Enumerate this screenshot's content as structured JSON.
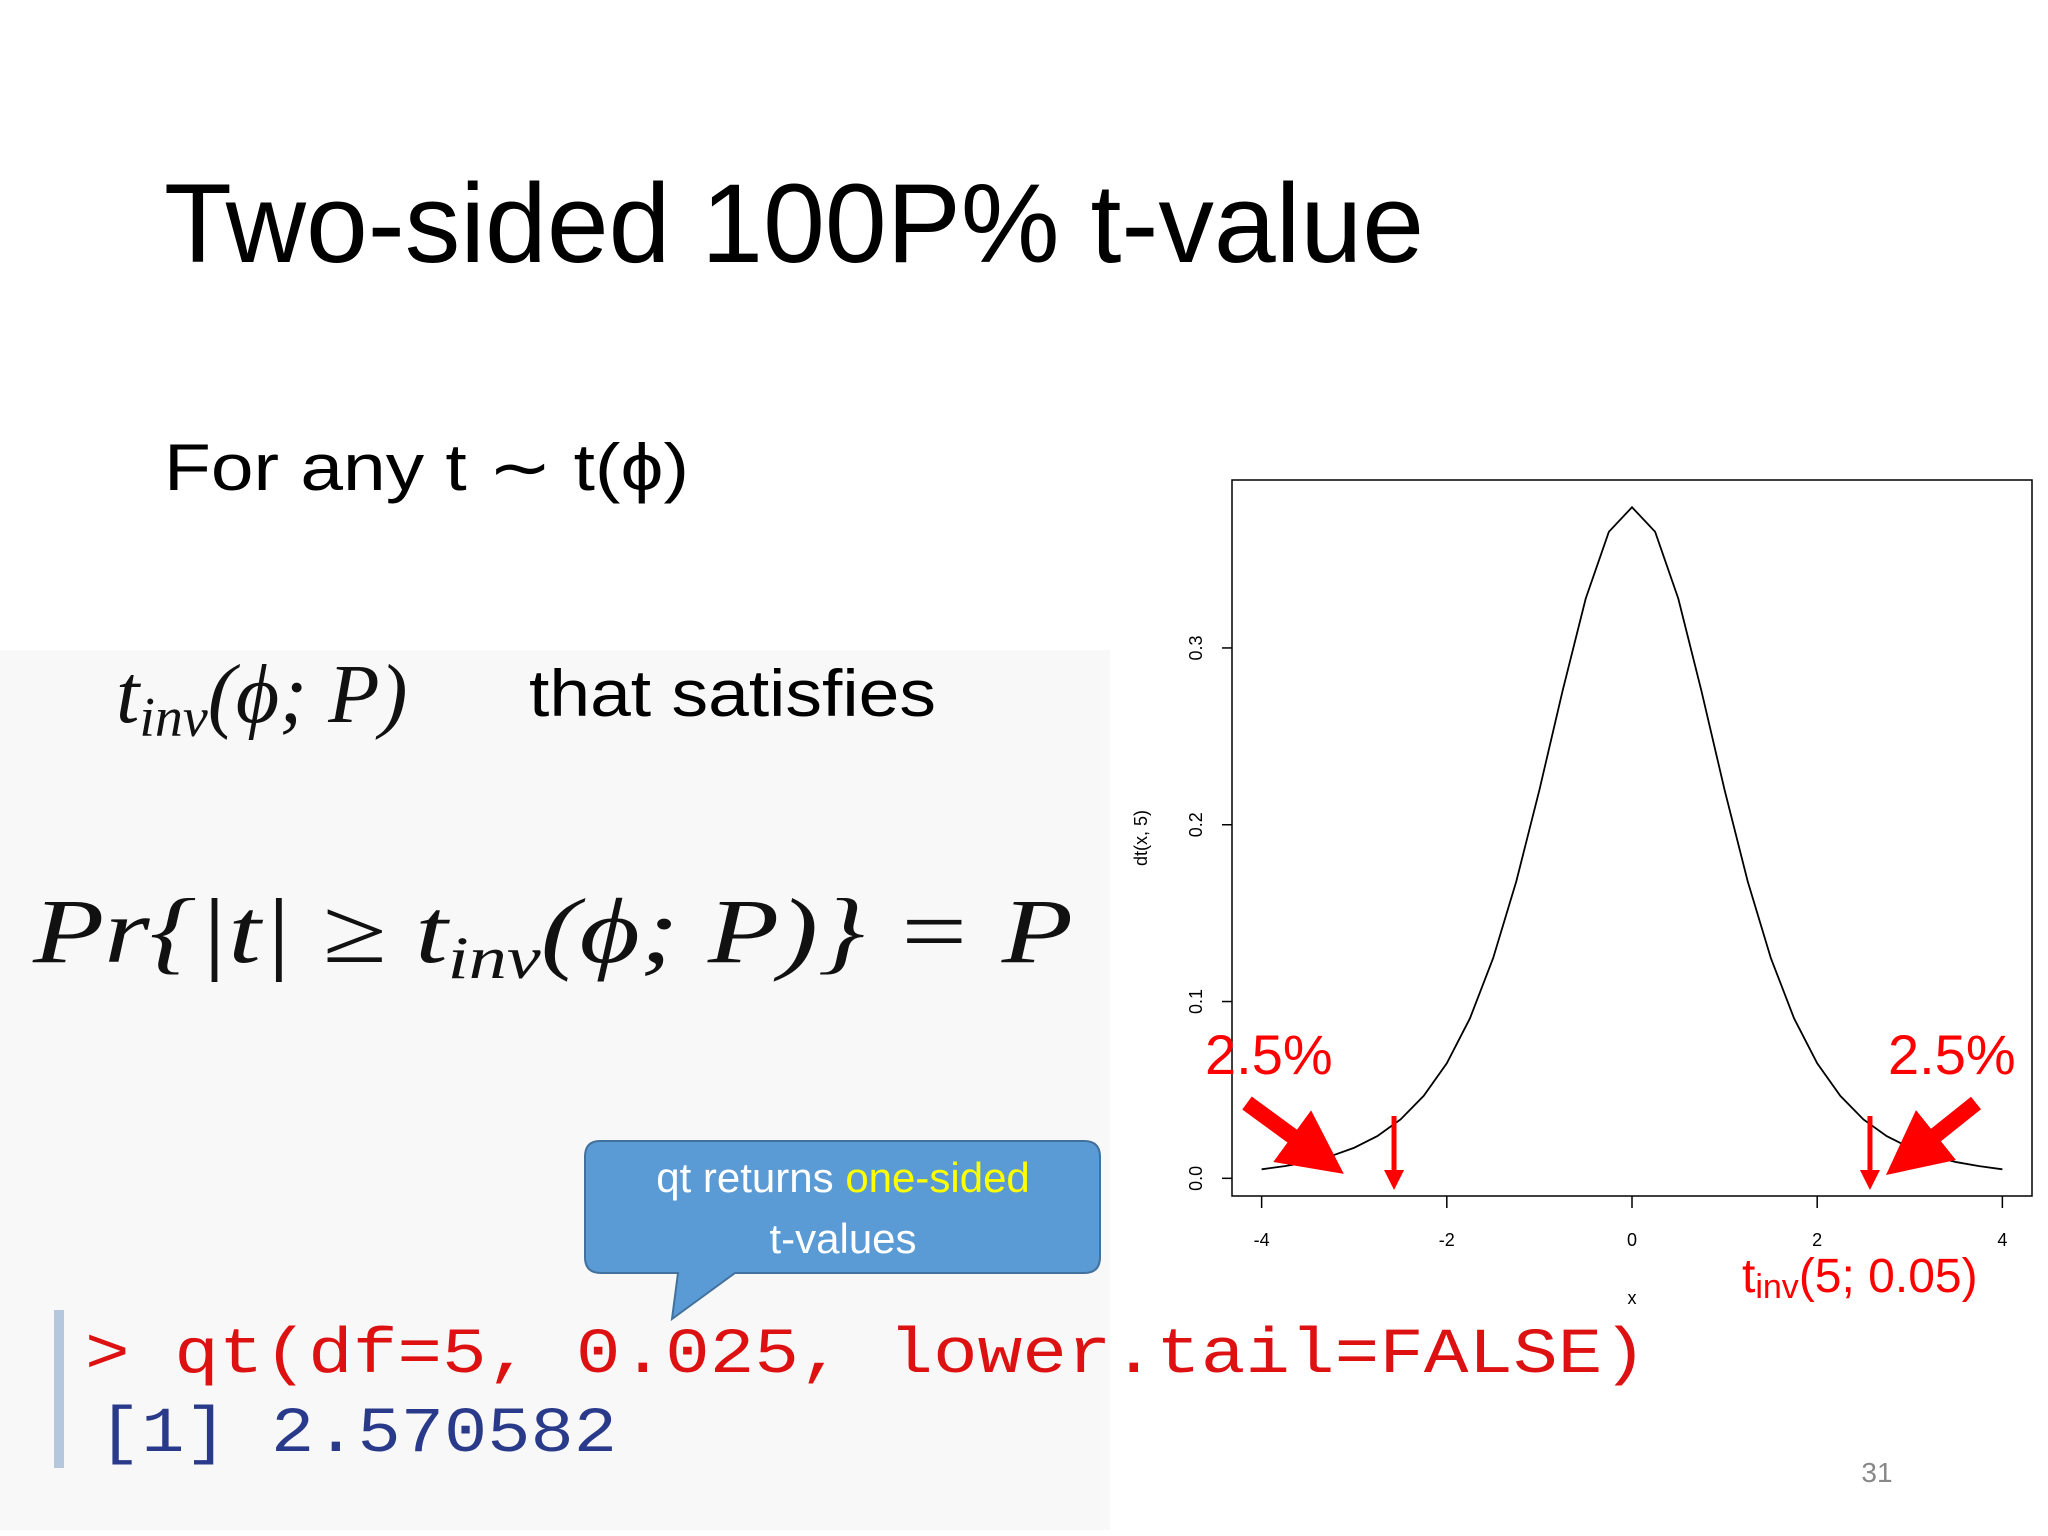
{
  "slide": {
    "title": "Two-sided 100P% t-value",
    "intro": "For any t ∼ t(ϕ)",
    "formula1": {
      "base": "t",
      "sub": "inv",
      "args": "(ϕ; P)",
      "text": "that satisfies"
    },
    "formula2": {
      "lead": "Pr{|t| ≥ t",
      "sub": "inv",
      "rest": "(ϕ; P)} = P"
    },
    "callout": {
      "part1": "qt returns ",
      "highlight": "one-sided",
      "line2": "t-values"
    },
    "code": {
      "command": "> qt(df=5, 0.025, lower.tail=FALSE)",
      "output": "[1] 2.570582"
    },
    "page_number": "31"
  },
  "chart_data": {
    "type": "line",
    "x_label": "x",
    "y_label": "dt(x, 5)",
    "x": [
      -4,
      -3.75,
      -3.5,
      -3.25,
      -3,
      -2.75,
      -2.5,
      -2.25,
      -2,
      -1.75,
      -1.5,
      -1.25,
      -1,
      -0.75,
      -0.5,
      -0.25,
      0,
      0.25,
      0.5,
      0.75,
      1,
      1.25,
      1.5,
      1.75,
      2,
      2.25,
      2.5,
      2.75,
      3,
      3.25,
      3.5,
      3.75,
      4
    ],
    "y": [
      0.0051,
      0.0069,
      0.0092,
      0.0126,
      0.0173,
      0.0239,
      0.0333,
      0.0466,
      0.0651,
      0.0905,
      0.1245,
      0.1679,
      0.2197,
      0.2757,
      0.3279,
      0.3657,
      0.3796,
      0.3657,
      0.3279,
      0.2757,
      0.2197,
      0.1679,
      0.1245,
      0.0905,
      0.0651,
      0.0466,
      0.0333,
      0.0239,
      0.0173,
      0.0126,
      0.0092,
      0.0069,
      0.0051
    ],
    "color": "#000000",
    "xlim": [
      -4.32,
      4.32
    ],
    "ylim": [
      -0.01,
      0.395
    ],
    "xticks": [
      -4,
      -2,
      0,
      2,
      4
    ],
    "yticks": [
      {
        "value": 0,
        "label": "0.0"
      },
      0.1,
      0.2,
      0.3
    ],
    "critical_values": [
      -2.57,
      2.57
    ],
    "annotations": [
      "2.5%",
      "2.5%"
    ],
    "critical_label": {
      "base": "t",
      "sub": "inv",
      "rest": "(5; 0.05)"
    },
    "annotation_color": "#ff0000"
  }
}
